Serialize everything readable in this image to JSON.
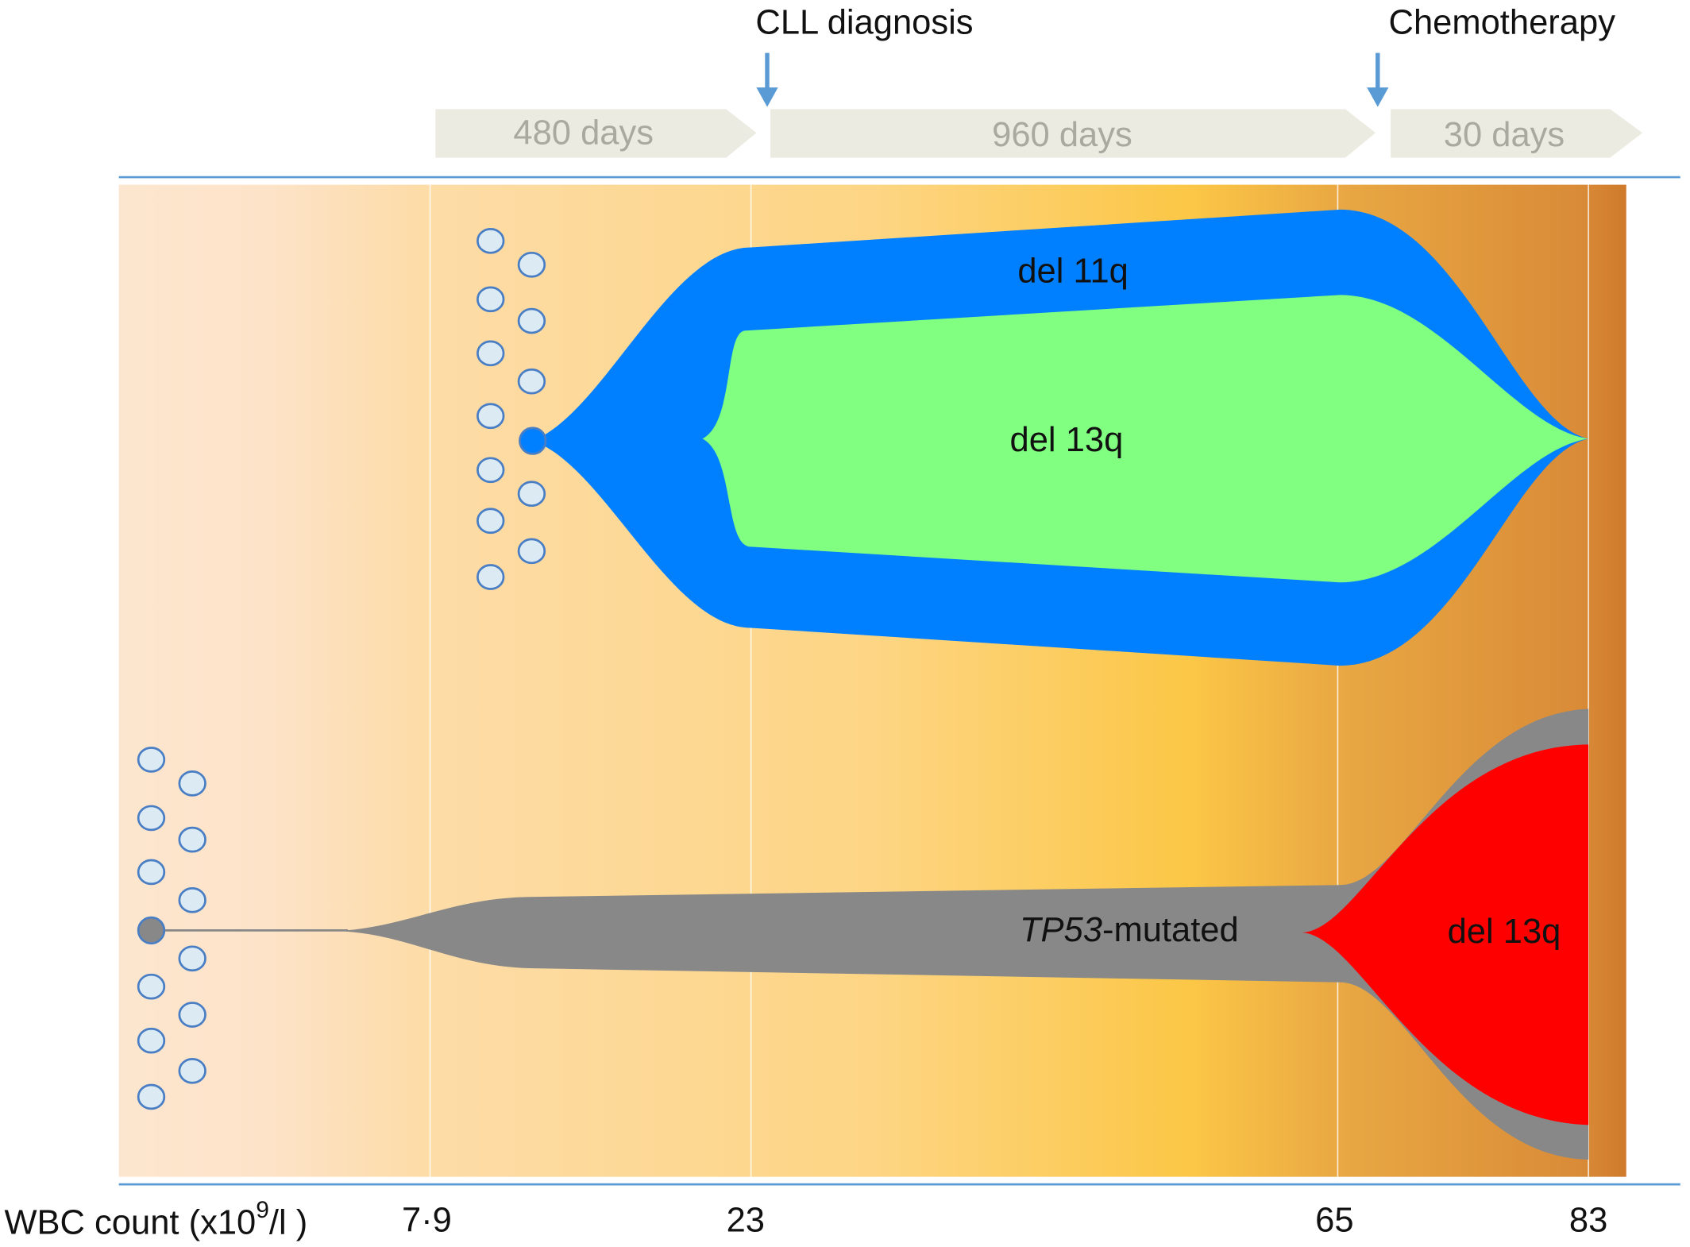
{
  "events": [
    "CLL diagnosis",
    "Chemotherapy"
  ],
  "intervals": [
    "480 days",
    "960 days",
    "30 days"
  ],
  "clones": {
    "upper": [
      "del 11q",
      "del 13q"
    ],
    "lower": {
      "parent": {
        "italic": "TP53",
        "rest": "-mutated"
      },
      "child": "del 13q"
    }
  },
  "wbc": {
    "label": {
      "prefix": "WBC count (x10",
      "superscript": "9",
      "suffix": "/l )"
    },
    "values": [
      "7·9",
      "23",
      "65",
      "83"
    ]
  }
}
